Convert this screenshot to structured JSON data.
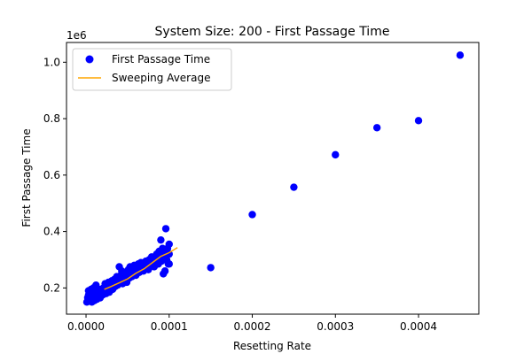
{
  "chart_data": {
    "type": "scatter",
    "title": "System Size: 200 - First Passage Time",
    "xlabel": "Resetting Rate",
    "ylabel": "First Passage Time",
    "y_offset_label": "1e6",
    "xlim": [
      -2.35e-05,
      0.0004725
    ],
    "ylim": [
      0.107,
      1.07
    ],
    "x_ticks": [
      0.0,
      0.0001,
      0.0002,
      0.0003,
      0.0004
    ],
    "x_tick_labels": [
      "0.0000",
      "0.0001",
      "0.0002",
      "0.0003",
      "0.0004"
    ],
    "y_ticks": [
      0.2,
      0.4,
      0.6,
      0.8,
      1.0
    ],
    "y_tick_labels": [
      "0.2",
      "0.4",
      "0.6",
      "0.8",
      "1.0"
    ],
    "legend": {
      "placement": "top-left",
      "entries": [
        "First Passage Time",
        "Sweeping Average"
      ]
    },
    "colors": {
      "scatter": "#0000ff",
      "average": "#ffa500"
    },
    "series": [
      {
        "name": "First Passage Time",
        "kind": "scatter",
        "points": [
          [
            1e-06,
            0.15
          ],
          [
            2e-06,
            0.165
          ],
          [
            3e-06,
            0.175
          ],
          [
            3e-06,
            0.19
          ],
          [
            4e-06,
            0.155
          ],
          [
            5e-06,
            0.16
          ],
          [
            5e-06,
            0.182
          ],
          [
            6e-06,
            0.17
          ],
          [
            6e-06,
            0.195
          ],
          [
            7e-06,
            0.15
          ],
          [
            8e-06,
            0.162
          ],
          [
            8e-06,
            0.178
          ],
          [
            9e-06,
            0.2
          ],
          [
            1e-05,
            0.155
          ],
          [
            1e-05,
            0.185
          ],
          [
            1.1e-05,
            0.168
          ],
          [
            1.2e-05,
            0.175
          ],
          [
            1.2e-05,
            0.21
          ],
          [
            1.3e-05,
            0.16
          ],
          [
            1.4e-05,
            0.19
          ],
          [
            1.5e-05,
            0.172
          ],
          [
            1.6e-05,
            0.18
          ],
          [
            1.7e-05,
            0.165
          ],
          [
            1.8e-05,
            0.195
          ],
          [
            1.9e-05,
            0.185
          ],
          [
            2e-05,
            0.175
          ],
          [
            2.1e-05,
            0.2
          ],
          [
            2.2e-05,
            0.19
          ],
          [
            2.3e-05,
            0.215
          ],
          [
            2.4e-05,
            0.18
          ],
          [
            2.5e-05,
            0.205
          ],
          [
            2.6e-05,
            0.195
          ],
          [
            2.7e-05,
            0.22
          ],
          [
            2.8e-05,
            0.185
          ],
          [
            2.9e-05,
            0.21
          ],
          [
            3e-05,
            0.2
          ],
          [
            3.1e-05,
            0.225
          ],
          [
            3.2e-05,
            0.195
          ],
          [
            3.3e-05,
            0.215
          ],
          [
            3.4e-05,
            0.23
          ],
          [
            3.5e-05,
            0.205
          ],
          [
            3.6e-05,
            0.22
          ],
          [
            3.7e-05,
            0.24
          ],
          [
            3.8e-05,
            0.21
          ],
          [
            3.9e-05,
            0.23
          ],
          [
            4e-05,
            0.275
          ],
          [
            4.1e-05,
            0.225
          ],
          [
            4.2e-05,
            0.245
          ],
          [
            4.3e-05,
            0.26
          ],
          [
            4.4e-05,
            0.215
          ],
          [
            4.5e-05,
            0.24
          ],
          [
            4.6e-05,
            0.25
          ],
          [
            4.7e-05,
            0.23
          ],
          [
            4.8e-05,
            0.255
          ],
          [
            4.9e-05,
            0.22
          ],
          [
            5e-05,
            0.245
          ],
          [
            5.1e-05,
            0.265
          ],
          [
            5.2e-05,
            0.235
          ],
          [
            5.3e-05,
            0.275
          ],
          [
            5.4e-05,
            0.255
          ],
          [
            5.5e-05,
            0.24
          ],
          [
            5.6e-05,
            0.27
          ],
          [
            5.7e-05,
            0.25
          ],
          [
            5.8e-05,
            0.28
          ],
          [
            5.9e-05,
            0.26
          ],
          [
            6e-05,
            0.245
          ],
          [
            6.1e-05,
            0.275
          ],
          [
            6.2e-05,
            0.265
          ],
          [
            6.3e-05,
            0.285
          ],
          [
            6.4e-05,
            0.255
          ],
          [
            6.5e-05,
            0.27
          ],
          [
            6.6e-05,
            0.29
          ],
          [
            6.7e-05,
            0.265
          ],
          [
            6.8e-05,
            0.28
          ],
          [
            6.9e-05,
            0.26
          ],
          [
            7e-05,
            0.285
          ],
          [
            7.1e-05,
            0.27
          ],
          [
            7.2e-05,
            0.295
          ],
          [
            7.3e-05,
            0.275
          ],
          [
            7.4e-05,
            0.29
          ],
          [
            7.5e-05,
            0.265
          ],
          [
            7.6e-05,
            0.3
          ],
          [
            7.7e-05,
            0.28
          ],
          [
            7.8e-05,
            0.295
          ],
          [
            7.9e-05,
            0.31
          ],
          [
            8e-05,
            0.285
          ],
          [
            8.1e-05,
            0.3
          ],
          [
            8.2e-05,
            0.275
          ],
          [
            8.3e-05,
            0.31
          ],
          [
            8.4e-05,
            0.29
          ],
          [
            8.5e-05,
            0.32
          ],
          [
            8.6e-05,
            0.3
          ],
          [
            8.7e-05,
            0.285
          ],
          [
            8.8e-05,
            0.33
          ],
          [
            8.9e-05,
            0.31
          ],
          [
            9e-05,
            0.37
          ],
          [
            9.1e-05,
            0.295
          ],
          [
            9.2e-05,
            0.34
          ],
          [
            9.3e-05,
            0.25
          ],
          [
            9.4e-05,
            0.32
          ],
          [
            9.5e-05,
            0.26
          ],
          [
            9.6e-05,
            0.41
          ],
          [
            9.7e-05,
            0.3
          ],
          [
            9.8e-05,
            0.34
          ],
          [
            9.9e-05,
            0.285
          ],
          [
            0.0001,
            0.355
          ],
          [
            0.0001,
            0.32
          ],
          [
            0.0001,
            0.285
          ],
          [
            0.00015,
            0.272
          ],
          [
            0.0002,
            0.46
          ],
          [
            0.00025,
            0.557
          ],
          [
            0.0003,
            0.672
          ],
          [
            0.00035,
            0.768
          ],
          [
            0.0004,
            0.793
          ],
          [
            0.00045,
            1.025
          ]
        ]
      },
      {
        "name": "Sweeping Average",
        "kind": "line",
        "points": [
          [
            2.2e-05,
            0.195
          ],
          [
            3e-05,
            0.205
          ],
          [
            4e-05,
            0.218
          ],
          [
            5e-05,
            0.232
          ],
          [
            6e-05,
            0.252
          ],
          [
            7e-05,
            0.268
          ],
          [
            8e-05,
            0.29
          ],
          [
            9e-05,
            0.312
          ],
          [
            0.0001,
            0.325
          ],
          [
            0.00011,
            0.343
          ]
        ]
      }
    ]
  }
}
